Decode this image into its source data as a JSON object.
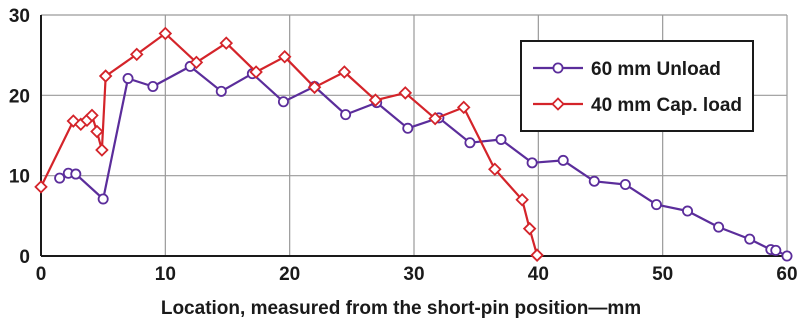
{
  "chart_data": {
    "type": "line",
    "title": "",
    "xlabel": "Location, measured from the short-pin position—mm",
    "ylabel": "",
    "xlim": [
      0,
      60
    ],
    "ylim": [
      0,
      30
    ],
    "x_ticks": [
      "0",
      "10",
      "20",
      "30",
      "40",
      "50",
      "60"
    ],
    "y_ticks": [
      "0",
      "10",
      "20",
      "30"
    ],
    "grid": "horizontal and vertical gridlines at each tick",
    "legend_position": "top-right",
    "series": [
      {
        "name": "60 mm Unload",
        "color": "#5b2d9b",
        "marker": "circle",
        "points": [
          [
            1.5,
            9.7
          ],
          [
            2.2,
            10.3
          ],
          [
            2.8,
            10.2
          ],
          [
            5,
            7.1
          ],
          [
            7,
            22.1
          ],
          [
            9,
            21.1
          ],
          [
            12,
            23.6
          ],
          [
            14.5,
            20.5
          ],
          [
            17,
            22.7
          ],
          [
            19.5,
            19.2
          ],
          [
            22,
            21.1
          ],
          [
            24.5,
            17.6
          ],
          [
            27,
            19.1
          ],
          [
            29.5,
            15.9
          ],
          [
            32,
            17.2
          ],
          [
            34.5,
            14.1
          ],
          [
            37,
            14.5
          ],
          [
            39.5,
            11.6
          ],
          [
            42,
            11.9
          ],
          [
            44.5,
            9.3
          ],
          [
            47,
            8.9
          ],
          [
            49.5,
            6.4
          ],
          [
            52,
            5.6
          ],
          [
            54.5,
            3.6
          ],
          [
            57,
            2.1
          ],
          [
            58.7,
            0.8
          ],
          [
            59.1,
            0.7
          ],
          [
            60,
            0
          ]
        ]
      },
      {
        "name": "40 mm Cap. load",
        "color": "#d4242a",
        "marker": "diamond",
        "points": [
          [
            0,
            8.6
          ],
          [
            2.6,
            16.8
          ],
          [
            3.2,
            16.4
          ],
          [
            3.7,
            16.9
          ],
          [
            4.1,
            17.5
          ],
          [
            4.5,
            15.5
          ],
          [
            4.9,
            13.2
          ],
          [
            5.2,
            22.4
          ],
          [
            7.7,
            25.1
          ],
          [
            10,
            27.7
          ],
          [
            12.5,
            24.1
          ],
          [
            14.9,
            26.5
          ],
          [
            17.3,
            22.9
          ],
          [
            19.6,
            24.8
          ],
          [
            22,
            21
          ],
          [
            24.4,
            22.9
          ],
          [
            26.9,
            19.4
          ],
          [
            29.3,
            20.3
          ],
          [
            31.7,
            17.1
          ],
          [
            34,
            18.5
          ],
          [
            36.5,
            10.8
          ],
          [
            38.7,
            7
          ],
          [
            39.3,
            3.4
          ],
          [
            39.9,
            0.1
          ]
        ]
      }
    ]
  }
}
